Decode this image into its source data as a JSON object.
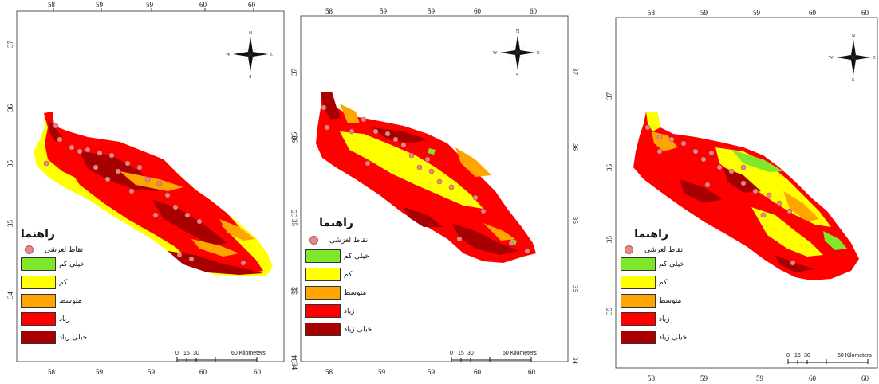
{
  "colors": {
    "very_low": "#7fe82a",
    "low": "#ffff00",
    "moderate": "#ffa500",
    "high": "#ff0000",
    "very_high": "#a80000",
    "point": "#e8888a"
  },
  "legend": {
    "title": "راهنما",
    "point_label": "نقاط لغزشی",
    "classes": [
      {
        "label": "خیلی کم",
        "color": "#7fe82a"
      },
      {
        "label": "کم",
        "color": "#ffff00"
      },
      {
        "label": "متوسط",
        "color": "#ffa500"
      },
      {
        "label": "زیاد",
        "color": "#ff0000"
      },
      {
        "label": "خیلی زیاد",
        "color": "#a80000"
      }
    ]
  },
  "scale_bar": {
    "labels": [
      "0",
      "15",
      "30",
      "60 Kilometers"
    ]
  },
  "compass": {
    "n": "N",
    "s": "S",
    "e": "E",
    "w": "W"
  },
  "maps": [
    {
      "top_ticks": [
        "58",
        "59",
        "59",
        "60",
        "60"
      ],
      "bottom_ticks": [
        "58",
        "59",
        "59",
        "60",
        "60"
      ],
      "left_ticks": [
        "37",
        "36",
        "35",
        "35",
        "34"
      ],
      "right_ticks": [
        "36",
        "35",
        "35",
        "34"
      ]
    },
    {
      "top_ticks": [
        "58",
        "59",
        "59",
        "60",
        "60"
      ],
      "bottom_ticks": [
        "58",
        "59",
        "59",
        "60",
        "60"
      ],
      "left_ticks": [
        "37",
        "36",
        "35",
        "35",
        "34"
      ],
      "right_ticks": [
        "37",
        "36",
        "35",
        "35",
        "34"
      ]
    },
    {
      "top_ticks": [
        "58",
        "59",
        "59",
        "60",
        "60"
      ],
      "bottom_ticks": [
        "58",
        "59",
        "59",
        "60",
        "60"
      ],
      "left_ticks": [
        "37",
        "36",
        "35",
        "35"
      ],
      "right_ticks": []
    }
  ]
}
